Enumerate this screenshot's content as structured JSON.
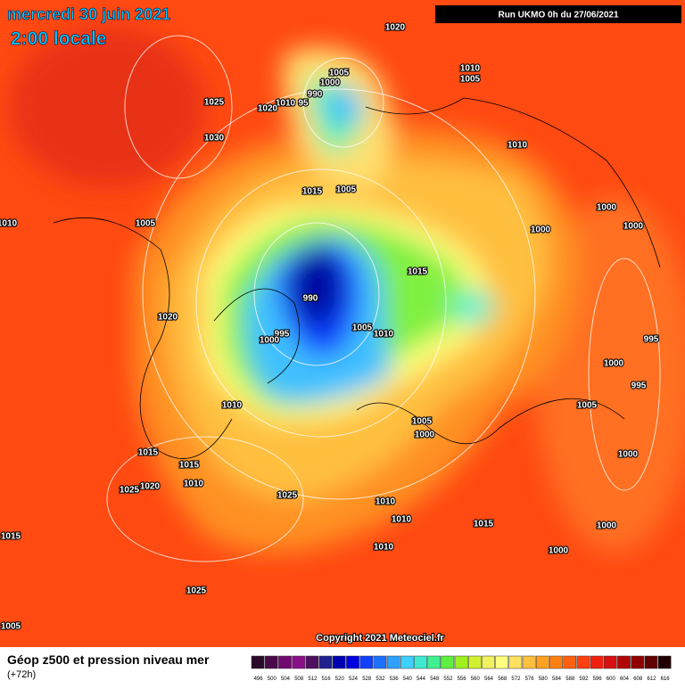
{
  "header": {
    "date": "mercredi 30 juin 2021",
    "time": "2:00 locale",
    "run": "Run UKMO 0h du 27/06/2021"
  },
  "map": {
    "isobar_labels": [
      "1020",
      "1005",
      "1000",
      "990",
      "1010",
      "95",
      "1020",
      "1025",
      "1030",
      "1010",
      "1005",
      "1010",
      "1015",
      "1005",
      "1005",
      "1010",
      "1000",
      "1000",
      "1000",
      "1015",
      "990",
      "1020",
      "1005",
      "1010",
      "995",
      "1000",
      "995",
      "1000",
      "995",
      "1010",
      "1005",
      "1005",
      "1000",
      "1015",
      "1015",
      "1000",
      "1025",
      "1020",
      "1010",
      "1025",
      "1010",
      "1010",
      "1015",
      "1000",
      "1015",
      "1010",
      "1000",
      "1025",
      "1005"
    ],
    "copyright": "Copyright 2021 Meteociel.fr"
  },
  "footer": {
    "title": "Géop z500 et pression niveau mer",
    "lead": "(+72h)",
    "scale": {
      "labels": [
        "496",
        "500",
        "504",
        "508",
        "512",
        "516",
        "520",
        "524",
        "528",
        "532",
        "536",
        "540",
        "544",
        "548",
        "552",
        "556",
        "560",
        "564",
        "568",
        "572",
        "576",
        "580",
        "584",
        "588",
        "592",
        "596",
        "600",
        "604",
        "608",
        "612",
        "616"
      ],
      "colors": [
        "#2a0a2a",
        "#4a0a4a",
        "#700a70",
        "#8a108a",
        "#501060",
        "#202090",
        "#0000b0",
        "#0000e0",
        "#1040ff",
        "#2070ff",
        "#30a0ff",
        "#40d0ff",
        "#40e8d0",
        "#40f090",
        "#60f040",
        "#a0f020",
        "#d0f030",
        "#f0f060",
        "#ffff80",
        "#ffe060",
        "#ffc040",
        "#ffa020",
        "#ff8010",
        "#ff6010",
        "#ff4010",
        "#f02010",
        "#d81010",
        "#b00808",
        "#900000",
        "#600000",
        "#200000"
      ]
    }
  }
}
